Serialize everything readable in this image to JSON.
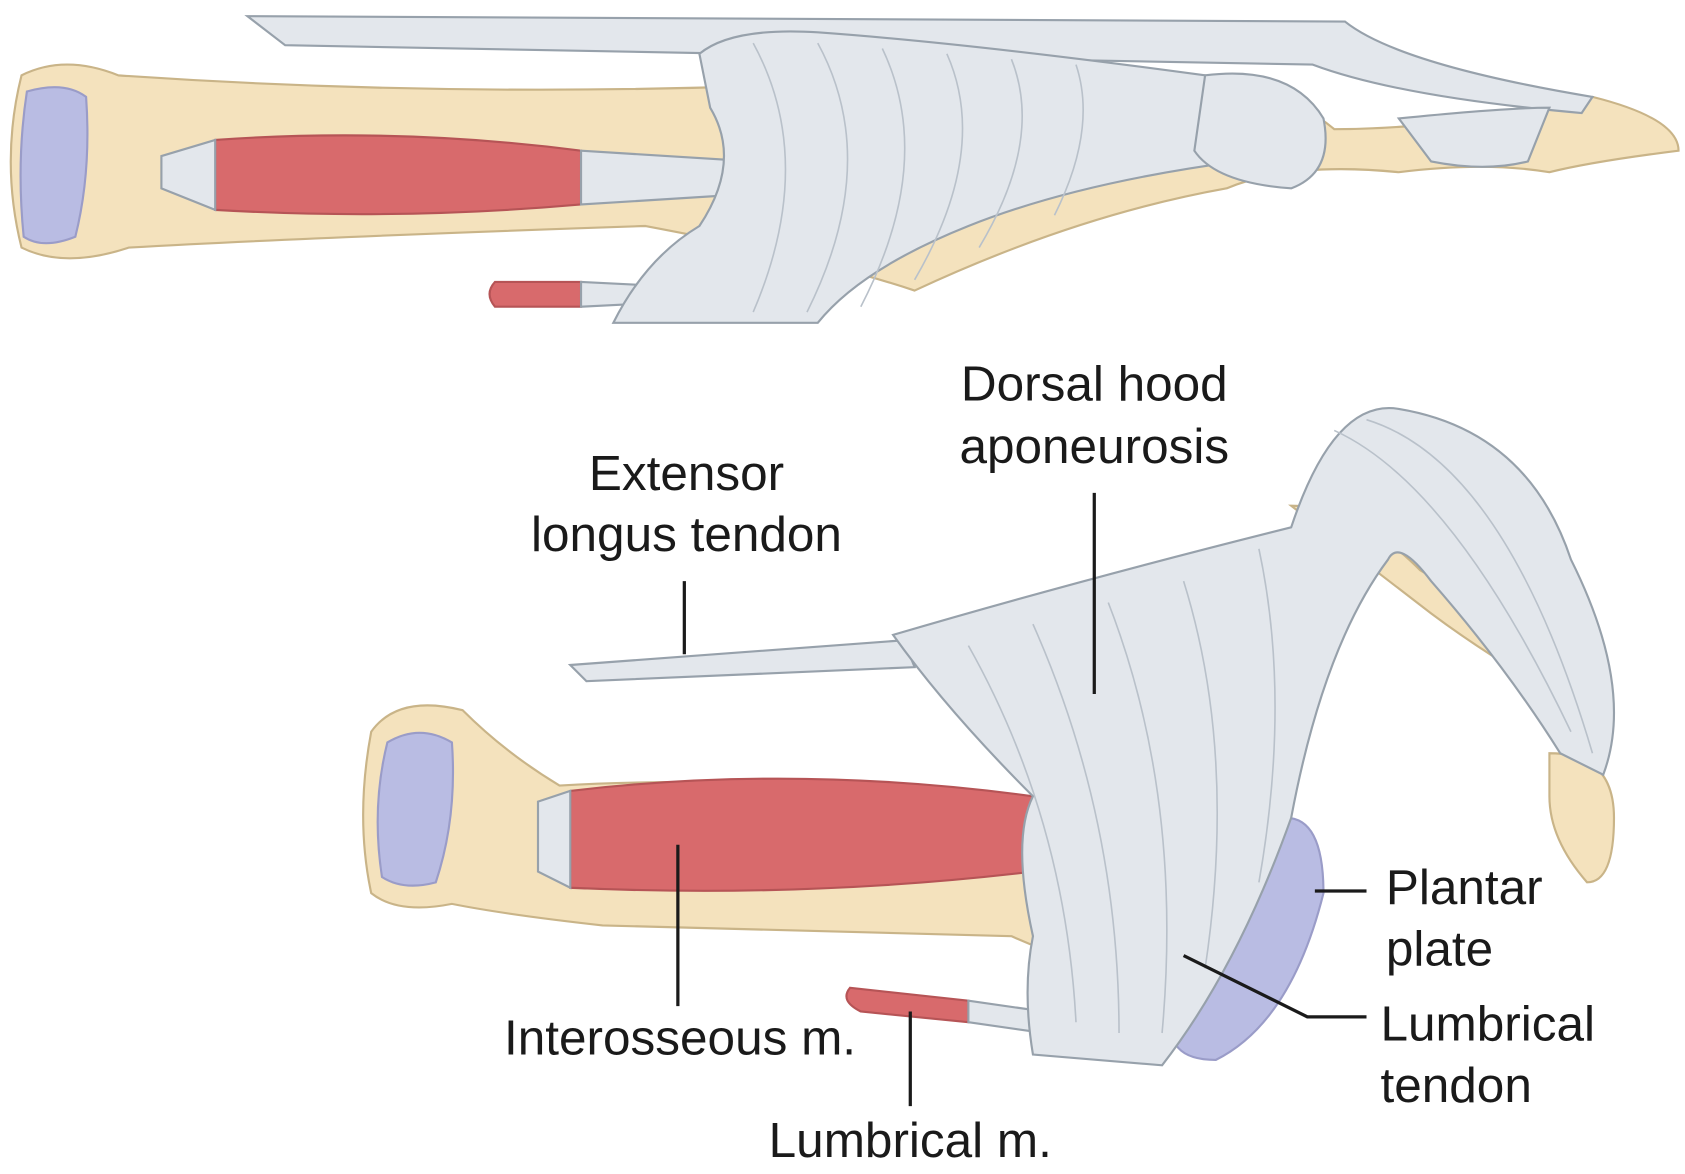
{
  "labels": {
    "dorsal_hood": [
      "Dorsal hood",
      "aponeurosis"
    ],
    "extensor": [
      "Extensor",
      "longus tendon"
    ],
    "plantar_plate": [
      "Plantar",
      "plate"
    ],
    "lumbrical_tendon": [
      "Lumbrical",
      "tendon"
    ],
    "interosseous": [
      "Interosseous m."
    ],
    "lumbrical_m": [
      "Lumbrical m."
    ]
  }
}
